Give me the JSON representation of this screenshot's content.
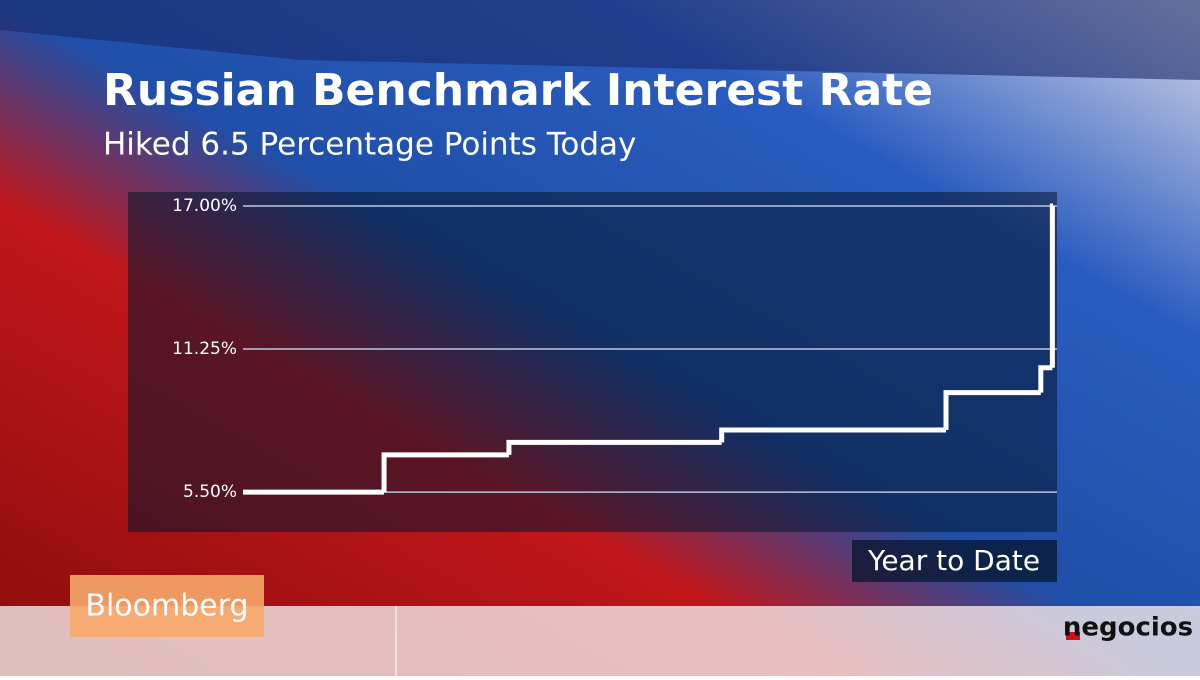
{
  "chart_data": {
    "type": "step-line",
    "title": "Russian Benchmark Interest Rate",
    "subtitle": "Hiked 6.5 Percentage Points Today",
    "x_label": "Year to Date",
    "x": [
      0,
      61,
      115,
      207,
      304,
      345,
      350
    ],
    "series": [
      {
        "color": "#ffffff",
        "values": [
          5.5,
          7.0,
          7.5,
          8.0,
          9.5,
          10.5,
          17.0
        ]
      }
    ],
    "xlim": [
      0,
      352
    ],
    "ylim": [
      3.9,
      17.56
    ],
    "yticks": [
      {
        "value": 17.0,
        "label": "17.00%"
      },
      {
        "value": 11.25,
        "label": "11.25%"
      },
      {
        "value": 5.5,
        "label": "5.50%"
      }
    ],
    "grid": true
  },
  "branding": {
    "broadcaster": "Bloomberg",
    "site": "negocios"
  }
}
